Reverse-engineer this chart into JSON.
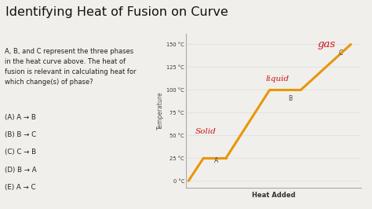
{
  "title": "Identifying Heat of Fusion on Curve",
  "title_fontsize": 11.5,
  "background_color": "#f0efeb",
  "left_para": "A, B, and C represent the three phases\nin the heat curve above. The heat of\nfusion is relevant in calculating heat for\nwhich change(s) of phase?",
  "choices": [
    "(A) A → B",
    "(B) B → C",
    "(C) C → B",
    "(D) B → A",
    "(E) A → C"
  ],
  "xlabel": "Heat Added",
  "ylabel": "Temperature",
  "ytick_vals": [
    0,
    25,
    50,
    75,
    100,
    125,
    150
  ],
  "ytick_labels": [
    "0 °C",
    "25 °C",
    "50 °C",
    "75 °C",
    "100 °C",
    "125 °C",
    "150 °C"
  ],
  "curve_color": "#e8960a",
  "curve_lw": 2.2,
  "segments": [
    [
      [
        0,
        1.2
      ],
      [
        0,
        25
      ]
    ],
    [
      [
        1.2,
        3.0
      ],
      [
        25,
        25
      ]
    ],
    [
      [
        3.0,
        6.5
      ],
      [
        25,
        100
      ]
    ],
    [
      [
        6.5,
        9.0
      ],
      [
        100,
        100
      ]
    ],
    [
      [
        9.0,
        13.0
      ],
      [
        100,
        150
      ]
    ]
  ],
  "xlim": [
    -0.2,
    13.8
  ],
  "ylim": [
    -8,
    162
  ],
  "ann_gas_x": 10.3,
  "ann_gas_y": 147,
  "ann_liquid_x": 6.2,
  "ann_liquid_y": 110,
  "ann_solid_x": 0.55,
  "ann_solid_y": 52,
  "ann_A_x": 2.05,
  "ann_A_y": 20,
  "ann_B_x": 8.0,
  "ann_B_y": 88,
  "ann_C_x": 12.0,
  "ann_C_y": 138,
  "text_color_red": "#cc1111",
  "text_color_dark": "#444444",
  "axis_color": "#aaaaaa",
  "grid_color": "#dddddd"
}
